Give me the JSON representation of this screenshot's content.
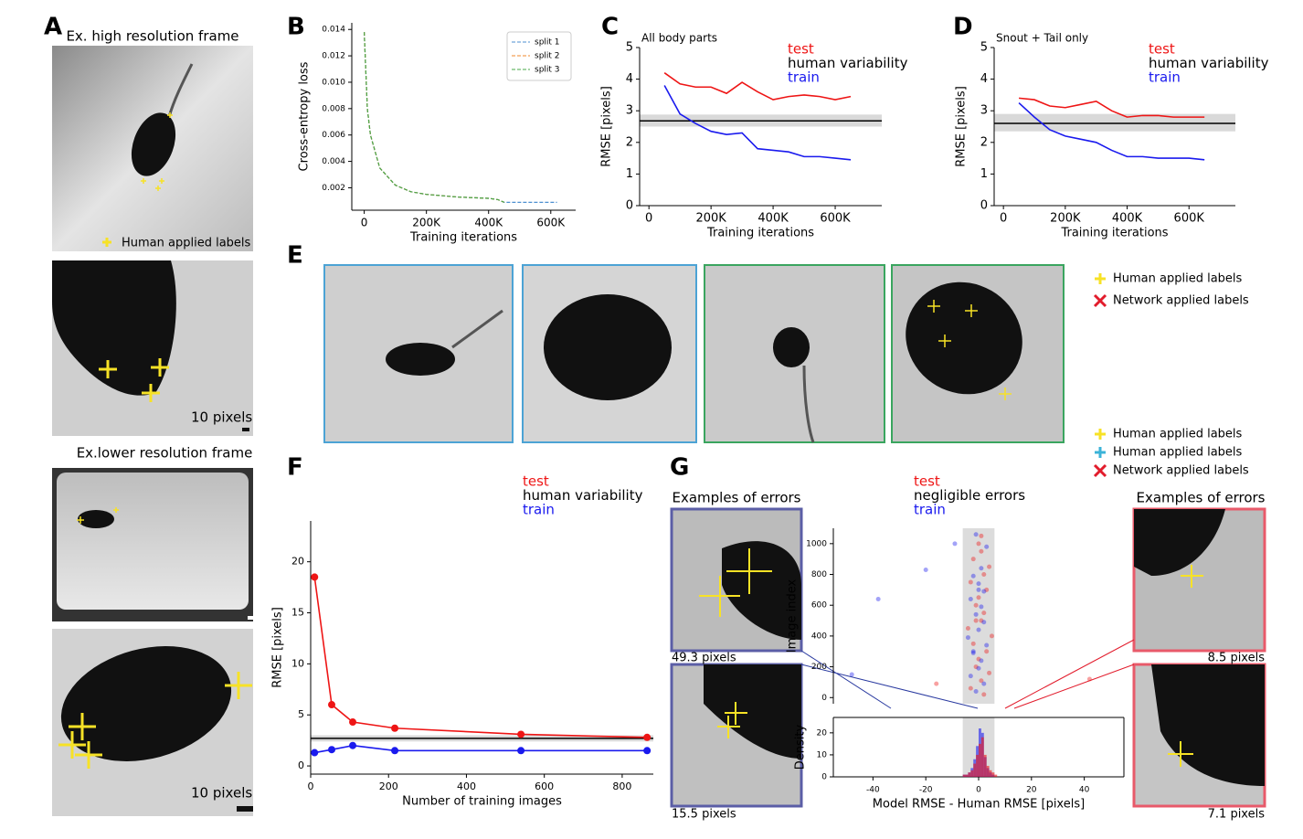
{
  "figure": {
    "panel_labels": [
      "A",
      "B",
      "C",
      "D",
      "E",
      "F",
      "G"
    ],
    "a_titles": [
      "Ex. high resolution frame",
      "Ex.lower resolution frame"
    ],
    "a_legend": "Human applied labels",
    "a_scale": [
      "10 pixels",
      "10 pixels"
    ],
    "e_legend": [
      "Human applied labels",
      "Network applied labels"
    ],
    "g_legend": [
      "Human applied labels",
      "Human applied labels",
      "Network applied labels"
    ],
    "g_examples_title": [
      "Examples of errors",
      "Examples of errors"
    ],
    "g_captions": [
      "49.3 pixels",
      "15.5 pixels",
      "8.5 pixels",
      "7.1 pixels"
    ]
  },
  "chart_data": [
    {
      "type": "line",
      "xlabel": "Training iterations",
      "ylabel": "Cross-entropy loss",
      "x": [
        0,
        10000,
        20000,
        50000,
        100000,
        150000,
        200000,
        300000,
        400000,
        430000,
        450000,
        500000,
        550000,
        600000,
        620000
      ],
      "xlim": [
        -40000,
        680000
      ],
      "xticks": [
        0,
        {
          "value": 200000,
          "label": "200K"
        },
        {
          "value": 400000,
          "label": "400K"
        },
        {
          "value": 600000,
          "label": "600K"
        }
      ],
      "ylim": [
        0.0003,
        0.0145
      ],
      "yticks": [
        0.002,
        0.004,
        0.006,
        0.008,
        {
          "value": 0.01,
          "label": "0.010"
        },
        0.012,
        0.014
      ],
      "legend": "upper right",
      "linestyle": "dashed",
      "series": [
        {
          "name": "split 1",
          "color": "#4c8fd0",
          "values": [
            0.0138,
            0.008,
            0.006,
            0.0035,
            0.0022,
            0.0017,
            0.0015,
            0.0013,
            0.0012,
            0.0011,
            0.0009,
            0.0009,
            0.0009,
            0.0009,
            0.0009
          ]
        },
        {
          "name": "split 2",
          "color": "#f08a2c",
          "values": [
            0.0138,
            0.008,
            0.006,
            0.0035,
            0.0022,
            0.0017,
            0.0015,
            0.0013,
            0.0012,
            0.0011,
            0.0009,
            null,
            null,
            null,
            null
          ]
        },
        {
          "name": "split 3",
          "color": "#4aa84a",
          "values": [
            0.0138,
            0.008,
            0.006,
            0.0035,
            0.0022,
            0.0017,
            0.0015,
            0.0013,
            0.0012,
            0.0011,
            0.0009,
            null,
            null,
            null,
            null
          ]
        }
      ]
    },
    {
      "type": "line",
      "annotation": "All body parts",
      "xlabel": "Training iterations",
      "ylabel": "RMSE [pixels]",
      "x": [
        50000,
        100000,
        150000,
        200000,
        250000,
        300000,
        350000,
        400000,
        450000,
        500000,
        550000,
        600000,
        650000
      ],
      "xlim": [
        -30000,
        750000
      ],
      "xticks": [
        0,
        {
          "value": 200000,
          "label": "200K"
        },
        {
          "value": 400000,
          "label": "400K"
        },
        {
          "value": 600000,
          "label": "600K"
        }
      ],
      "ylim": [
        0,
        5
      ],
      "yticks": [
        0,
        1,
        2,
        3,
        4,
        5
      ],
      "series": [
        {
          "name": "test",
          "color": "#ee1515",
          "values": [
            4.2,
            3.85,
            3.75,
            3.75,
            3.55,
            3.9,
            3.6,
            3.35,
            3.45,
            3.5,
            3.45,
            3.35,
            3.45
          ]
        },
        {
          "name": "train",
          "color": "#1a1aee",
          "values": [
            3.8,
            2.9,
            2.6,
            2.35,
            2.25,
            2.3,
            1.8,
            1.75,
            1.7,
            1.55,
            1.55,
            1.5,
            1.45
          ]
        }
      ],
      "reference": {
        "name": "human variability",
        "color": "#000000",
        "value": 2.68,
        "band": [
          2.5,
          2.88
        ]
      }
    },
    {
      "type": "line",
      "annotation": "Snout + Tail only",
      "xlabel": "Training iterations",
      "ylabel": "RMSE [pixels]",
      "x": [
        50000,
        100000,
        150000,
        200000,
        250000,
        300000,
        350000,
        400000,
        450000,
        500000,
        550000,
        600000,
        650000
      ],
      "xlim": [
        -30000,
        750000
      ],
      "xticks": [
        0,
        {
          "value": 200000,
          "label": "200K"
        },
        {
          "value": 400000,
          "label": "400K"
        },
        {
          "value": 600000,
          "label": "600K"
        }
      ],
      "ylim": [
        0,
        5
      ],
      "yticks": [
        0,
        1,
        2,
        3,
        4,
        5
      ],
      "series": [
        {
          "name": "test",
          "color": "#ee1515",
          "values": [
            3.4,
            3.35,
            3.15,
            3.1,
            3.2,
            3.3,
            3.0,
            2.8,
            2.85,
            2.85,
            2.8,
            2.8,
            2.8
          ]
        },
        {
          "name": "train",
          "color": "#1a1aee",
          "values": [
            3.25,
            2.8,
            2.4,
            2.2,
            2.1,
            2.0,
            1.75,
            1.55,
            1.55,
            1.5,
            1.5,
            1.5,
            1.45
          ]
        }
      ],
      "reference": {
        "name": "human variability",
        "color": "#000000",
        "value": 2.6,
        "band": [
          2.35,
          2.9
        ]
      }
    },
    {
      "type": "line",
      "marker": "circle",
      "xlabel": "Number of training images",
      "ylabel": "RMSE [pixels]",
      "x": [
        10,
        54,
        108,
        216,
        540,
        864
      ],
      "xlim": [
        0,
        880
      ],
      "xticks": [
        0,
        200,
        400,
        600,
        800
      ],
      "ylim": [
        -0.8,
        24
      ],
      "yticks": [
        0,
        5,
        10,
        15,
        20
      ],
      "series": [
        {
          "name": "test",
          "color": "#ee1515",
          "values": [
            18.5,
            6.0,
            4.3,
            3.7,
            3.1,
            2.8
          ]
        },
        {
          "name": "train",
          "color": "#1a1aee",
          "values": [
            1.3,
            1.6,
            2.0,
            1.5,
            1.5,
            1.5
          ]
        }
      ],
      "reference": {
        "name": "human variability",
        "color": "#000000",
        "value": 2.7,
        "band": [
          2.4,
          3.0
        ]
      }
    },
    {
      "type": "scatter",
      "ylabel": "Image index",
      "xlim": [
        -55,
        55
      ],
      "ylim": [
        -40,
        1100
      ],
      "yticks": [
        0,
        200,
        400,
        600,
        800,
        1000
      ],
      "series": [
        {
          "name": "test",
          "color": "#ee1515",
          "x": [
            2,
            -3,
            1,
            4,
            -1,
            0,
            3,
            -2,
            5,
            -4,
            1,
            2,
            -1,
            0,
            3,
            -3,
            2,
            4,
            -2,
            1,
            -16,
            42,
            0,
            1,
            -1
          ],
          "values": [
            20,
            60,
            110,
            160,
            200,
            250,
            300,
            350,
            400,
            450,
            500,
            550,
            600,
            650,
            700,
            750,
            800,
            850,
            900,
            950,
            90,
            120,
            1000,
            1050,
            500
          ]
        },
        {
          "name": "train",
          "color": "#1a1aee",
          "x": [
            -1,
            2,
            -3,
            0,
            1,
            -2,
            3,
            -4,
            0,
            2,
            -1,
            1,
            -3,
            2,
            0,
            -2,
            1,
            -48,
            -38,
            -20,
            -9,
            -1,
            3,
            0,
            -2
          ],
          "values": [
            40,
            90,
            140,
            190,
            240,
            290,
            340,
            390,
            440,
            490,
            540,
            590,
            640,
            690,
            740,
            790,
            840,
            150,
            640,
            830,
            1000,
            1060,
            980,
            700,
            300
          ]
        }
      ],
      "highlight": {
        "name": "negligible errors",
        "range": [
          -6,
          6
        ]
      }
    },
    {
      "type": "histogram",
      "xlabel": "Model RMSE - Human RMSE [pixels]",
      "ylabel": "Density",
      "xlim": [
        -55,
        55
      ],
      "xticks": [
        -40,
        -20,
        0,
        20,
        40
      ],
      "ylim": [
        0,
        27
      ],
      "yticks": [
        0,
        10,
        20
      ],
      "bins": [
        -8,
        -7,
        -6,
        -5,
        -4,
        -3,
        -2,
        -1,
        0,
        1,
        2,
        3,
        4,
        5,
        6,
        7,
        8
      ],
      "series": [
        {
          "name": "train",
          "color": "#1a1aee",
          "values": [
            0,
            0,
            1,
            1,
            2,
            4,
            8,
            14,
            22,
            20,
            9,
            4,
            2,
            1,
            0,
            0
          ]
        },
        {
          "name": "test",
          "color": "#ee1515",
          "values": [
            0,
            0,
            1,
            1,
            2,
            3,
            6,
            10,
            15,
            18,
            10,
            5,
            3,
            2,
            1,
            0
          ]
        }
      ],
      "highlight": {
        "range": [
          -6,
          6
        ]
      }
    }
  ]
}
